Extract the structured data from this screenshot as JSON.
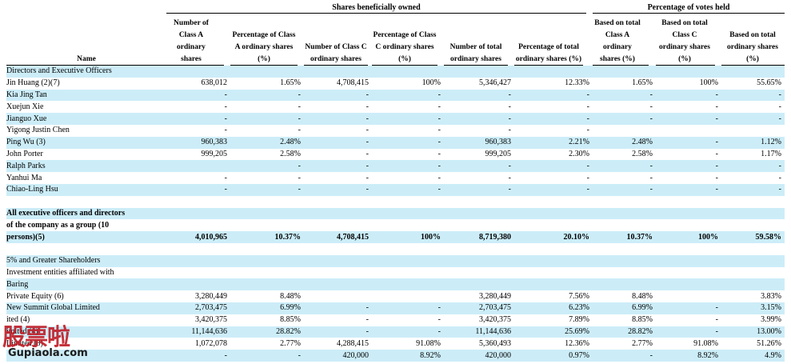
{
  "groups": {
    "shares": "Shares beneficially owned",
    "votes": "Percentage of votes held"
  },
  "headers": {
    "name": "Name",
    "c1": "Number of Class A ordinary shares",
    "c2": "Percentage of Class A ordinary shares (%)",
    "c3": "Number of Class C ordinary shares",
    "c4": "Percentage of Class C ordinary shares (%)",
    "c5": "Number of total ordinary shares",
    "c6": "Percentage of total ordinary shares (%)",
    "c7": "Based on total Class A ordinary shares (%)",
    "c8": "Based on total Class C ordinary shares (%)",
    "c9": "Based on total ordinary shares (%)"
  },
  "rows": [
    {
      "name": "Directors and Executive Officers",
      "cells": [
        "",
        "",
        "",
        "",
        "",
        "",
        "",
        "",
        ""
      ]
    },
    {
      "name": "Jin Huang (2)(7)",
      "cells": [
        "638,012",
        "1.65%",
        "4,708,415",
        "100%",
        "5,346,427",
        "12.33%",
        "1.65%",
        "100%",
        "55.65%"
      ]
    },
    {
      "name": "Kia Jing Tan",
      "cells": [
        "-",
        "-",
        "-",
        "-",
        "-",
        "-",
        "-",
        "-",
        "-"
      ]
    },
    {
      "name": "Xuejun Xie",
      "cells": [
        "-",
        "-",
        "-",
        "-",
        "-",
        "-",
        "-",
        "-",
        "-"
      ]
    },
    {
      "name": "Jianguo Xue",
      "cells": [
        "-",
        "-",
        "-",
        "-",
        "-",
        "-",
        "-",
        "-",
        "-"
      ]
    },
    {
      "name": "Yigong Justin Chen",
      "cells": [
        "-",
        "-",
        "-",
        "-",
        "-",
        "-",
        "",
        "",
        ""
      ]
    },
    {
      "name": "Ping Wu (3)",
      "cells": [
        "960,383",
        "2.48%",
        "-",
        "-",
        "960,383",
        "2.21%",
        "2.48%",
        "-",
        "1.12%"
      ]
    },
    {
      "name": "John Porter",
      "cells": [
        "999,205",
        "2.58%",
        "-",
        "-",
        "999,205",
        "2.30%",
        "2.58%",
        "-",
        "1.17%"
      ]
    },
    {
      "name": "Ralph Parks",
      "cells": [
        "",
        "-",
        "-",
        "-",
        "-",
        "-",
        "-",
        "-",
        "-"
      ]
    },
    {
      "name": "Yanhui Ma",
      "cells": [
        "-",
        "-",
        "-",
        "-",
        "-",
        "-",
        "-",
        "-",
        "-"
      ]
    },
    {
      "name": "Chiao-Ling Hsu",
      "cells": [
        "-",
        "-",
        "-",
        "-",
        "-",
        "-",
        "-",
        "-",
        "-"
      ]
    },
    {
      "name": "",
      "cells": [
        "",
        "",
        "",
        "",
        "",
        "",
        "",
        "",
        ""
      ]
    },
    {
      "name": "All executive officers and directors",
      "cells": [
        "",
        "",
        "",
        "",
        "",
        "",
        "",
        "",
        ""
      ],
      "bold": true
    },
    {
      "name": "of the company as a group (10",
      "cells": [
        "",
        "",
        "",
        "",
        "",
        "",
        "",
        "",
        ""
      ],
      "bold": true
    },
    {
      "name": "persons)(5)",
      "cells": [
        "4,010,965",
        "10.37%",
        "4,708,415",
        "100%",
        "8,719,380",
        "20.10%",
        "10.37%",
        "100%",
        "59.58%"
      ],
      "bold": true
    },
    {
      "name": "",
      "cells": [
        "",
        "",
        "",
        "",
        "",
        "",
        "",
        "",
        ""
      ]
    },
    {
      "name": "5% and Greater Shareholders",
      "cells": [
        "",
        "",
        "",
        "",
        "",
        "",
        "",
        "",
        ""
      ]
    },
    {
      "name": "Investment entities affiliated with",
      "cells": [
        "",
        "",
        "",
        "",
        "",
        "",
        "",
        "",
        ""
      ]
    },
    {
      "name": "Baring",
      "cells": [
        "",
        "",
        "",
        "",
        "",
        "",
        "",
        "",
        ""
      ]
    },
    {
      "name": "Private Equity  (6)",
      "cells": [
        "3,280,449",
        "8.48%",
        "",
        "",
        "3,280,449",
        "7.56%",
        "8.48%",
        "",
        "3.83%"
      ]
    },
    {
      "name": "New Summit Global Limited",
      "cells": [
        "2,703,475",
        "6.99%",
        "-",
        "-",
        "2,703,475",
        "6.23%",
        "6.99%",
        "-",
        "3.15%"
      ]
    },
    {
      "name": "ited (4)",
      "cells": [
        "3,420,375",
        "8.85%",
        "-",
        "-",
        "3,420,375",
        "7.89%",
        "8.85%",
        "-",
        "3.99%"
      ]
    },
    {
      "name": "imited (4)",
      "cells": [
        "11,144,636",
        "28.82%",
        "-",
        "-",
        "11,144,636",
        "25.69%",
        "28.82%",
        "-",
        "13.00%"
      ]
    },
    {
      "name": "Limited (8)",
      "cells": [
        "1,072,078",
        "2.77%",
        "4,288,415",
        "91.08%",
        "5,360,493",
        "12.36%",
        "2.77%",
        "91.08%",
        "51.26%"
      ]
    },
    {
      "name": "",
      "cells": [
        "-",
        "-",
        "420,000",
        "8.92%",
        "420,000",
        "0.97%",
        "-",
        "8.92%",
        "4.9%"
      ]
    }
  ],
  "watermark": {
    "chars": "股票啦",
    "url": "Gupiaola.com"
  }
}
